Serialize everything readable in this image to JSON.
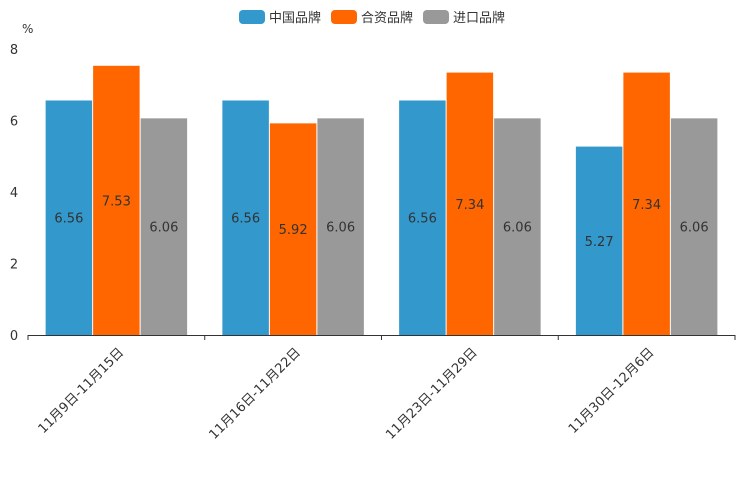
{
  "chart_data": {
    "type": "bar",
    "title": "",
    "unit_label": "%",
    "xlabel": "",
    "ylabel": "%",
    "ylim": [
      0,
      8
    ],
    "yticks": [
      "0",
      "2",
      "4",
      "6",
      "8"
    ],
    "categories": [
      "11月9日-11月15日",
      "11月16日-11月22日",
      "11月23日-11月29日",
      "11月30日-12月6日"
    ],
    "series": [
      {
        "name": "中国品牌",
        "color": "#3398cc",
        "values": [
          6.56,
          6.56,
          6.56,
          5.27
        ],
        "labels": [
          "6.56",
          "6.56",
          "6.56",
          "5.27"
        ]
      },
      {
        "name": "合资品牌",
        "color": "#ff6600",
        "values": [
          7.53,
          5.92,
          7.34,
          7.34
        ],
        "labels": [
          "7.53",
          "5.92",
          "7.34",
          "7.34"
        ]
      },
      {
        "name": "进口品牌",
        "color": "#999999",
        "values": [
          6.06,
          6.06,
          6.06,
          6.06
        ],
        "labels": [
          "6.06",
          "6.06",
          "6.06",
          "6.06"
        ]
      }
    ],
    "legend_position": "top-center",
    "grid": false
  }
}
